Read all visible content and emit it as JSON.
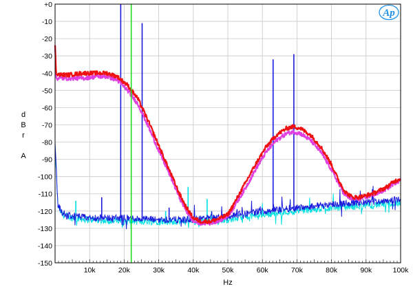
{
  "chart_data": {
    "type": "line",
    "title": "",
    "xlabel": "Hz",
    "ylabel_letters": [
      "d",
      "B",
      "r",
      "",
      "A"
    ],
    "xlim": [
      0,
      100000
    ],
    "ylim": [
      -150,
      0
    ],
    "grid": true,
    "x_ticks": [
      {
        "value": 10000,
        "label": "10k"
      },
      {
        "value": 20000,
        "label": "20k"
      },
      {
        "value": 30000,
        "label": "30k"
      },
      {
        "value": 40000,
        "label": "40k"
      },
      {
        "value": 50000,
        "label": "50k"
      },
      {
        "value": 60000,
        "label": "60k"
      },
      {
        "value": 70000,
        "label": "70k"
      },
      {
        "value": 80000,
        "label": "80k"
      },
      {
        "value": 90000,
        "label": "90k"
      },
      {
        "value": 100000,
        "label": "100k"
      }
    ],
    "y_ticks": [
      {
        "value": 0,
        "label": "+0"
      },
      {
        "value": -10,
        "label": "-10"
      },
      {
        "value": -20,
        "label": "-20"
      },
      {
        "value": -30,
        "label": "-30"
      },
      {
        "value": -40,
        "label": "-40"
      },
      {
        "value": -50,
        "label": "-50"
      },
      {
        "value": -60,
        "label": "-60"
      },
      {
        "value": -70,
        "label": "-70"
      },
      {
        "value": -80,
        "label": "-80"
      },
      {
        "value": -90,
        "label": "-90"
      },
      {
        "value": -100,
        "label": "-100"
      },
      {
        "value": -110,
        "label": "-110"
      },
      {
        "value": -120,
        "label": "-120"
      },
      {
        "value": -130,
        "label": "-130"
      },
      {
        "value": -140,
        "label": "-140"
      },
      {
        "value": -150,
        "label": "-150"
      }
    ],
    "marker_line": {
      "x": 22050,
      "color": "#22dd22"
    },
    "series": [
      {
        "color": "#00e0e0",
        "kind": "noise",
        "x": [
          0,
          800,
          2000,
          5000,
          10000,
          20000,
          30000,
          40000,
          50000,
          60000,
          70000,
          80000,
          90000,
          95000,
          100000
        ],
        "y": [
          -82,
          -117,
          -122,
          -124,
          -125,
          -126,
          -126,
          -126,
          -125,
          -122,
          -120,
          -118,
          -117,
          -116,
          -115
        ],
        "spikes": [
          {
            "x": 6000,
            "y": -114
          },
          {
            "x": 32000,
            "y": -120
          },
          {
            "x": 38500,
            "y": -106
          },
          {
            "x": 44000,
            "y": -113
          }
        ]
      },
      {
        "color": "#1a1adc",
        "kind": "noise",
        "x": [
          0,
          800,
          2000,
          5000,
          10000,
          20000,
          30000,
          40000,
          50000,
          60000,
          70000,
          80000,
          90000,
          95000,
          100000
        ],
        "y": [
          -80,
          -116,
          -121,
          -123,
          -124,
          -124,
          -125,
          -125,
          -123,
          -120,
          -118,
          -116,
          -115,
          -114,
          -113
        ],
        "spikes": [
          {
            "x": 13500,
            "y": -112
          },
          {
            "x": 19000,
            "y": 0
          },
          {
            "x": 25200,
            "y": -11
          },
          {
            "x": 33000,
            "y": -118
          },
          {
            "x": 63100,
            "y": -32
          },
          {
            "x": 69100,
            "y": -29
          },
          {
            "x": 86000,
            "y": -112
          }
        ]
      },
      {
        "color": "#e040e0",
        "kind": "band",
        "x": [
          0,
          300,
          1500,
          4000,
          8000,
          12000,
          15000,
          18000,
          21000,
          24000,
          27000,
          30000,
          33000,
          36000,
          38000,
          40000,
          42000,
          45000,
          48000,
          50000,
          52000,
          55000,
          58000,
          61000,
          64000,
          67000,
          69000,
          71000,
          74000,
          77000,
          80000,
          82000,
          84000,
          86000,
          88000,
          90000,
          93000,
          96000,
          98000,
          100000
        ],
        "y": [
          -25,
          -43,
          -43,
          -43,
          -43,
          -42,
          -42,
          -44,
          -50,
          -58,
          -71,
          -85,
          -98,
          -112,
          -120,
          -126,
          -127,
          -127,
          -125,
          -123,
          -117,
          -107,
          -96,
          -86,
          -79,
          -75,
          -74,
          -75,
          -79,
          -86,
          -96,
          -104,
          -111,
          -113,
          -113,
          -112,
          -110,
          -107,
          -104,
          -102
        ]
      },
      {
        "color": "#ee1111",
        "kind": "band",
        "x": [
          0,
          300,
          1500,
          4000,
          8000,
          12000,
          15000,
          18000,
          21000,
          24000,
          27000,
          30000,
          33000,
          36000,
          38000,
          40000,
          42000,
          45000,
          48000,
          50000,
          52000,
          55000,
          58000,
          61000,
          64000,
          67000,
          69000,
          71000,
          74000,
          77000,
          80000,
          82000,
          84000,
          86000,
          88000,
          90000,
          93000,
          96000,
          98000,
          100000
        ],
        "y": [
          -23,
          -40,
          -41,
          -41,
          -40,
          -40,
          -40,
          -42,
          -47,
          -55,
          -68,
          -82,
          -96,
          -110,
          -118,
          -124,
          -126,
          -126,
          -124,
          -122,
          -115,
          -104,
          -93,
          -83,
          -76,
          -72,
          -71,
          -72,
          -76,
          -83,
          -93,
          -102,
          -109,
          -112,
          -112,
          -111,
          -109,
          -106,
          -103,
          -101
        ]
      }
    ]
  },
  "logo": {
    "text": "Ap",
    "color": "#1e90e6"
  }
}
